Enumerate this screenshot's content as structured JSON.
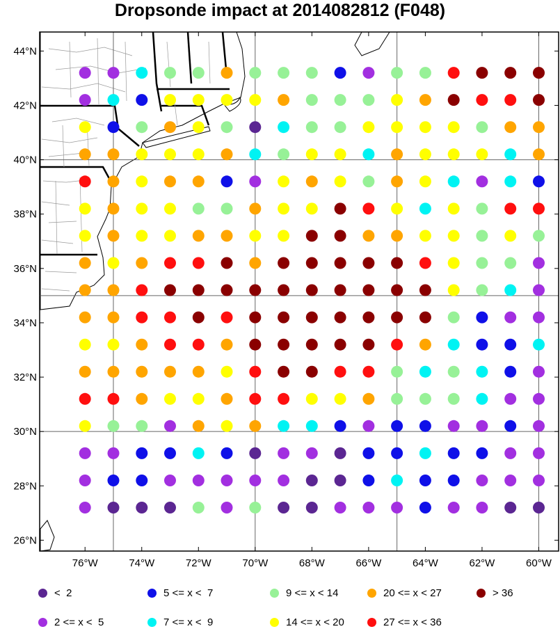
{
  "title": "Dropsonde impact at 2014082812 (F048)",
  "map": {
    "lat_range": [
      25.6,
      44.7
    ],
    "lon_range": [
      -77.6,
      -59.3
    ],
    "lat_ticks": [
      {
        "value": 26,
        "label": "26°N"
      },
      {
        "value": 28,
        "label": "28°N"
      },
      {
        "value": 30,
        "label": "30°N"
      },
      {
        "value": 32,
        "label": "32°N"
      },
      {
        "value": 34,
        "label": "34°N"
      },
      {
        "value": 36,
        "label": "36°N"
      },
      {
        "value": 38,
        "label": "38°N"
      },
      {
        "value": 40,
        "label": "40°N"
      },
      {
        "value": 42,
        "label": "42°N"
      },
      {
        "value": 44,
        "label": "44°N"
      }
    ],
    "lon_ticks": [
      {
        "value": -76,
        "label": "76°W"
      },
      {
        "value": -74,
        "label": "74°W"
      },
      {
        "value": -72,
        "label": "72°W"
      },
      {
        "value": -70,
        "label": "70°W"
      },
      {
        "value": -68,
        "label": "68°W"
      },
      {
        "value": -66,
        "label": "66°W"
      },
      {
        "value": -64,
        "label": "64°W"
      },
      {
        "value": -62,
        "label": "62°W"
      },
      {
        "value": -60,
        "label": "60°W"
      }
    ],
    "grid_lats": [
      30,
      35,
      40
    ],
    "grid_lons": [
      -75,
      -70,
      -65,
      -60
    ],
    "colors": {
      "indigo": "#5b2692",
      "purple": "#a22fe0",
      "blue": "#0f10e8",
      "cyan": "#00f3f3",
      "green": "#97f197",
      "yellow": "#ffff00",
      "orange": "#ffa500",
      "red": "#ff0f0f",
      "maroon": "#8a0000",
      "land": "#ffffff",
      "ocean": "#ffffff"
    },
    "grid_lons_values": [
      -76.0,
      -75.0,
      -74.0,
      -73.0,
      -72.0,
      -71.0,
      -70.0,
      -69.0,
      -68.0,
      -67.0,
      -66.0,
      -65.0,
      -64.0,
      -63.0,
      -62.0,
      -61.0,
      -60.0
    ],
    "grid_lat_values": [
      43.2,
      42.2,
      41.2,
      40.2,
      39.2,
      38.2,
      37.2,
      36.2,
      35.2,
      34.2,
      33.2,
      32.2,
      31.2,
      30.2,
      29.2,
      28.2,
      27.2
    ],
    "rows": [
      [
        "purple",
        "purple",
        "cyan",
        "green",
        "green",
        "orange",
        "green",
        "green",
        "green",
        "blue",
        "purple",
        "green",
        "green",
        "red",
        "maroon",
        "maroon",
        "maroon"
      ],
      [
        "purple",
        "cyan",
        "blue",
        "yellow",
        "yellow",
        "yellow",
        "yellow",
        "orange",
        "green",
        "green",
        "green",
        "yellow",
        "orange",
        "maroon",
        "red",
        "red",
        "maroon"
      ],
      [
        "yellow",
        "blue",
        "green",
        "orange",
        "yellow",
        "green",
        "indigo",
        "cyan",
        "green",
        "green",
        "yellow",
        "yellow",
        "yellow",
        "yellow",
        "green",
        "orange",
        "orange"
      ],
      [
        "orange",
        "orange",
        "yellow",
        "yellow",
        "yellow",
        "orange",
        "cyan",
        "green",
        "yellow",
        "yellow",
        "cyan",
        "orange",
        "yellow",
        "yellow",
        "yellow",
        "cyan",
        "orange"
      ],
      [
        "red",
        "orange",
        "yellow",
        "orange",
        "orange",
        "blue",
        "purple",
        "yellow",
        "orange",
        "yellow",
        "green",
        "orange",
        "yellow",
        "cyan",
        "purple",
        "cyan",
        "blue"
      ],
      [
        "yellow",
        "orange",
        "yellow",
        "yellow",
        "green",
        "green",
        "orange",
        "yellow",
        "yellow",
        "maroon",
        "red",
        "yellow",
        "cyan",
        "yellow",
        "green",
        "red",
        "red"
      ],
      [
        "yellow",
        "orange",
        "yellow",
        "yellow",
        "orange",
        "orange",
        "yellow",
        "yellow",
        "maroon",
        "maroon",
        "orange",
        "orange",
        "yellow",
        "yellow",
        "green",
        "yellow",
        "green"
      ],
      [
        "orange",
        "yellow",
        "orange",
        "red",
        "red",
        "maroon",
        "orange",
        "maroon",
        "maroon",
        "maroon",
        "maroon",
        "maroon",
        "red",
        "yellow",
        "green",
        "green",
        "purple"
      ],
      [
        "orange",
        "orange",
        "red",
        "maroon",
        "maroon",
        "maroon",
        "maroon",
        "maroon",
        "maroon",
        "maroon",
        "maroon",
        "maroon",
        "maroon",
        "yellow",
        "green",
        "cyan",
        "purple"
      ],
      [
        "orange",
        "orange",
        "red",
        "red",
        "maroon",
        "red",
        "maroon",
        "maroon",
        "maroon",
        "maroon",
        "maroon",
        "maroon",
        "maroon",
        "green",
        "blue",
        "purple",
        "purple"
      ],
      [
        "yellow",
        "yellow",
        "orange",
        "red",
        "red",
        "orange",
        "maroon",
        "maroon",
        "maroon",
        "maroon",
        "maroon",
        "red",
        "orange",
        "cyan",
        "blue",
        "blue",
        "cyan"
      ],
      [
        "orange",
        "orange",
        "orange",
        "orange",
        "orange",
        "yellow",
        "red",
        "maroon",
        "maroon",
        "red",
        "red",
        "green",
        "cyan",
        "green",
        "cyan",
        "blue",
        "purple"
      ],
      [
        "red",
        "red",
        "orange",
        "yellow",
        "yellow",
        "orange",
        "red",
        "red",
        "yellow",
        "yellow",
        "orange",
        "green",
        "green",
        "green",
        "cyan",
        "purple",
        "purple"
      ],
      [
        "yellow",
        "green",
        "green",
        "purple",
        "orange",
        "yellow",
        "orange",
        "cyan",
        "cyan",
        "blue",
        "purple",
        "blue",
        "blue",
        "purple",
        "purple",
        "blue",
        "purple"
      ],
      [
        "purple",
        "purple",
        "blue",
        "blue",
        "cyan",
        "blue",
        "indigo",
        "purple",
        "purple",
        "indigo",
        "blue",
        "blue",
        "cyan",
        "blue",
        "blue",
        "purple",
        "purple"
      ],
      [
        "purple",
        "blue",
        "blue",
        "purple",
        "purple",
        "purple",
        "purple",
        "purple",
        "indigo",
        "indigo",
        "blue",
        "cyan",
        "blue",
        "blue",
        "purple",
        "purple",
        "purple"
      ],
      [
        "purple",
        "indigo",
        "indigo",
        "indigo",
        "green",
        "purple",
        "green",
        "indigo",
        "indigo",
        "purple",
        "purple",
        "purple",
        "blue",
        "purple",
        "purple",
        "indigo",
        "indigo"
      ]
    ],
    "missing": [
      [
        0,
        0
      ]
    ]
  },
  "legend": [
    {
      "label": "<  2",
      "color": "#5b2692"
    },
    {
      "label": "5 <= x <  7",
      "color": "#0f10e8"
    },
    {
      "label": "9 <= x < 14",
      "color": "#97f197"
    },
    {
      "label": "20 <= x < 27",
      "color": "#ffa500"
    },
    {
      "label": "> 36",
      "color": "#8a0000"
    },
    {
      "label": "2 <= x <  5",
      "color": "#a22fe0"
    },
    {
      "label": "7 <= x <  9",
      "color": "#00f3f3"
    },
    {
      "label": "14 <= x < 20",
      "color": "#ffff00"
    },
    {
      "label": "27 <= x < 36",
      "color": "#ff0f0f"
    }
  ]
}
